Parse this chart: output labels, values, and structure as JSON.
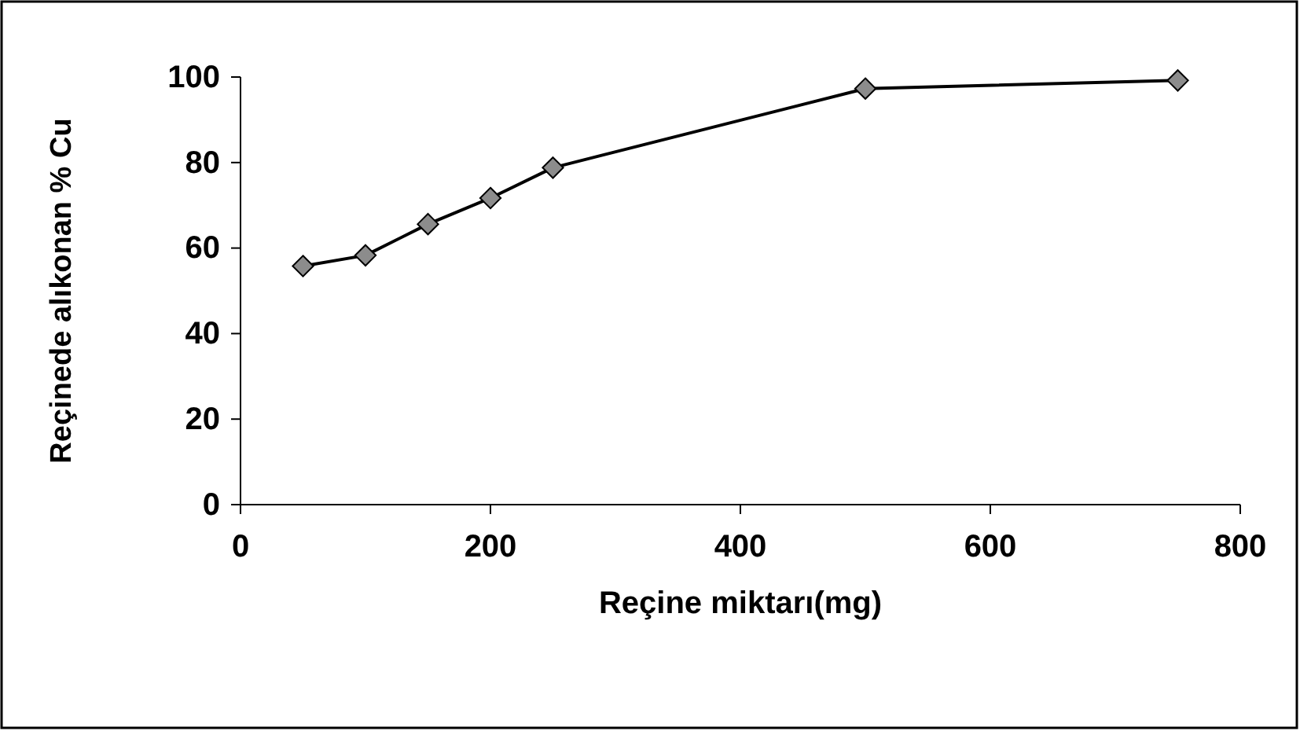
{
  "chart_data": {
    "type": "line",
    "xlabel": "Reçine miktarı(mg)",
    "ylabel": "Reçinede alıkonan % Cu",
    "x": [
      50,
      100,
      150,
      200,
      250,
      500,
      750
    ],
    "series": [
      {
        "color": "#000000",
        "values": [
          55.8,
          58.3,
          65.6,
          71.7,
          78.8,
          97.3,
          99.2
        ]
      }
    ],
    "xlim": [
      0,
      800
    ],
    "xticks": [
      0,
      200,
      400,
      600,
      800
    ],
    "ylim": [
      0,
      100
    ],
    "yticks": [
      0,
      20,
      40,
      60,
      80,
      100
    ],
    "marker": "diamond",
    "line_style": "solid"
  }
}
